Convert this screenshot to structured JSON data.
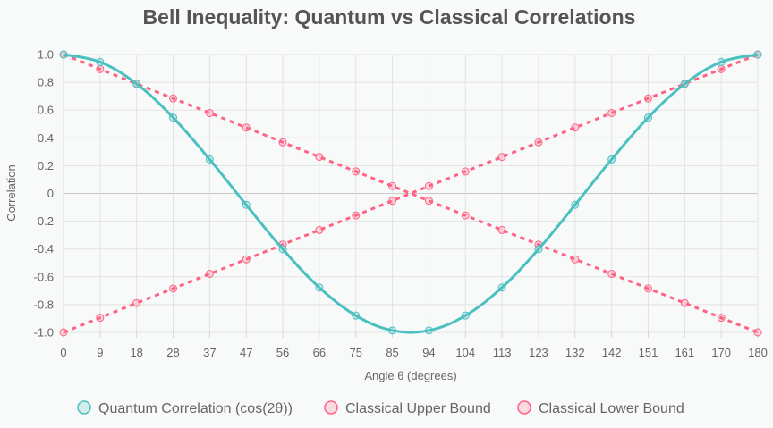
{
  "chart_data": {
    "type": "line",
    "title": "Bell Inequality: Quantum vs Classical Correlations",
    "xlabel": "Angle θ (degrees)",
    "ylabel": "Correlation",
    "categories": [
      "0",
      "9",
      "18",
      "28",
      "37",
      "47",
      "56",
      "66",
      "75",
      "85",
      "94",
      "104",
      "113",
      "123",
      "132",
      "142",
      "151",
      "161",
      "170",
      "180"
    ],
    "x": [
      0,
      9.47,
      18.95,
      28.42,
      37.89,
      47.37,
      56.84,
      66.32,
      75.79,
      85.26,
      94.74,
      104.21,
      113.68,
      123.16,
      132.63,
      142.11,
      151.58,
      161.05,
      170.53,
      180
    ],
    "ylim": [
      -1,
      1
    ],
    "yticks": [
      "1.0",
      "0.8",
      "0.6",
      "0.4",
      "0.2",
      "0",
      "-0.2",
      "-0.4",
      "-0.6",
      "-0.8",
      "-1.0"
    ],
    "grid": true,
    "legend_position": "bottom",
    "series": [
      {
        "name": "Quantum Correlation (cos(2θ))",
        "color": "#4bc0c0",
        "style": "solid",
        "values": [
          1.0,
          0.946,
          0.789,
          0.546,
          0.245,
          -0.082,
          -0.401,
          -0.677,
          -0.879,
          -0.986,
          -0.986,
          -0.879,
          -0.677,
          -0.401,
          -0.082,
          0.245,
          0.546,
          0.789,
          0.946,
          1.0
        ]
      },
      {
        "name": "Classical Upper Bound",
        "color": "#ff6384",
        "style": "dashed",
        "values": [
          1.0,
          0.895,
          0.789,
          0.684,
          0.579,
          0.474,
          0.368,
          0.263,
          0.158,
          0.053,
          -0.053,
          -0.158,
          -0.263,
          -0.368,
          -0.474,
          -0.579,
          -0.684,
          -0.789,
          -0.895,
          -1.0
        ]
      },
      {
        "name": "Classical Lower Bound",
        "color": "#ff6384",
        "style": "dashed",
        "values": [
          -1.0,
          -0.895,
          -0.789,
          -0.684,
          -0.579,
          -0.474,
          -0.368,
          -0.263,
          -0.158,
          -0.053,
          0.053,
          0.158,
          0.263,
          0.368,
          0.474,
          0.579,
          0.684,
          0.789,
          0.895,
          1.0
        ]
      }
    ]
  }
}
